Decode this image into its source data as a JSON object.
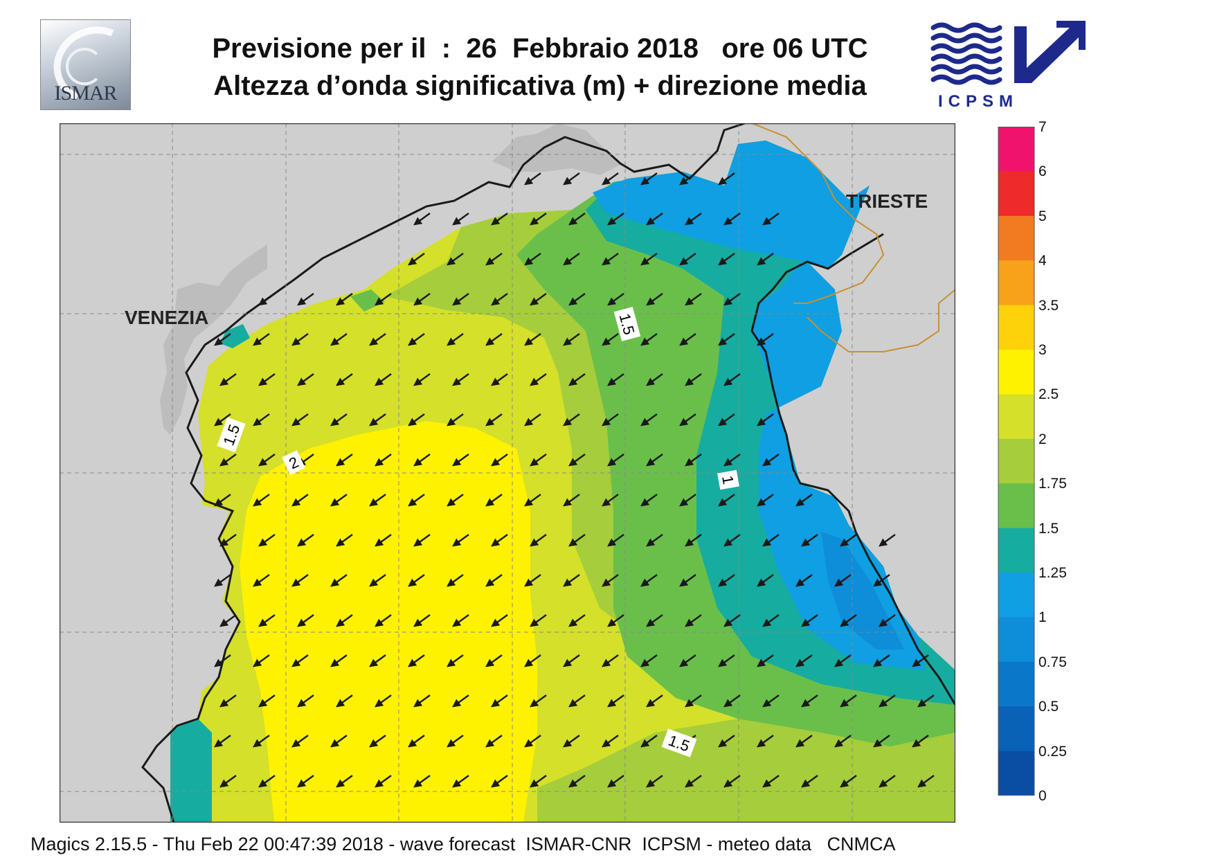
{
  "header": {
    "title_line1": "Previsione per il  :  26  Febbraio 2018   ore 06 UTC",
    "title_line2": "Altezza d’onda significativa (m) + direzione media"
  },
  "logos": {
    "ismar_text": "ISMAR",
    "icpsm_text": "ICPSM",
    "icpsm_color": "#1d2a8c"
  },
  "places": {
    "venezia": "VENEZIA",
    "trieste": "TRIESTE"
  },
  "contour_labels": [
    "1.5",
    "1.5",
    "2",
    "1",
    "1.5"
  ],
  "colorbar": {
    "labels": [
      "7",
      "6",
      "5",
      "4",
      "3.5",
      "3",
      "2.5",
      "2",
      "1.75",
      "1.5",
      "1.25",
      "1",
      "0.75",
      "0.5",
      "0.25",
      "0"
    ],
    "colors": [
      "#f0136e",
      "#ee2a2a",
      "#f27b22",
      "#f7a21a",
      "#fdd20a",
      "#fff200",
      "#d4e02a",
      "#a6cd3b",
      "#6abf4b",
      "#17aca0",
      "#0f9fe2",
      "#0e8dd8",
      "#0b77c8",
      "#0a62b6",
      "#0a4ea4"
    ]
  },
  "footer": "Magics 2.15.5 - Thu Feb 22 00:47:39 2018 - wave forecast  ISMAR-CNR  ICPSM - meteo data   CNMCA",
  "map": {
    "land_color": "#cfcfcf",
    "coast_color": "#1a1a1a",
    "border_color": "#c8902f",
    "arrow_color": "#1a1a1a",
    "wave_direction": "south-west",
    "band_colors": {
      "1.75-2": "#d4e02a",
      "2-2.5": "#fff200",
      "1.5-1.75": "#a6cd3b",
      "1.25-1.5": "#6abf4b",
      "1-1.25": "#17aca0",
      "0.75-1": "#0f9fe2",
      "0.5-0.75": "#0e8dd8"
    }
  }
}
